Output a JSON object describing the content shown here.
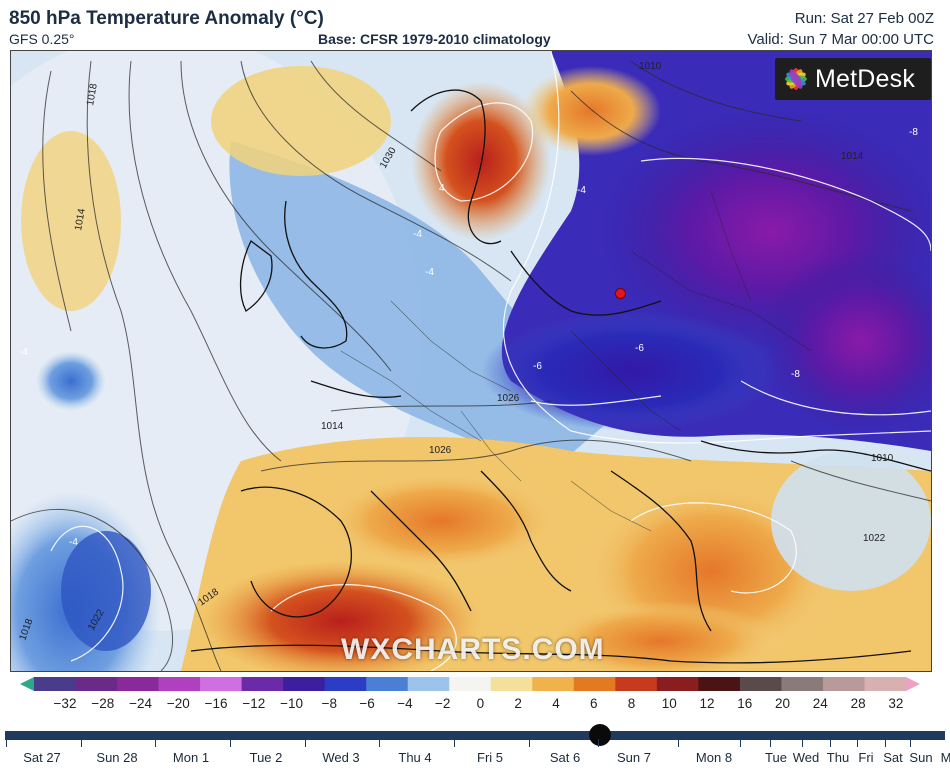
{
  "header": {
    "title": "850 hPa Temperature Anomaly (°C)",
    "model": "GFS 0.25°",
    "base": "Base: CFSR 1979-2010 climatology",
    "run": "Run: Sat 27 Feb 00Z",
    "valid": "Valid: Sun 7 Mar 00:00 UTC"
  },
  "brand": {
    "logo_text": "MetDesk",
    "watermark": "WXCHARTS.COM"
  },
  "map": {
    "isobar_labels": [
      "1018",
      "1014",
      "1030",
      "1010",
      "1026",
      "1018",
      "1014",
      "1022",
      "1026",
      "1018",
      "1022",
      "1014",
      "1010"
    ],
    "anomaly_labels": [
      "-4",
      "-4",
      "4",
      "-4",
      "-6",
      "-8",
      "-8",
      "-6",
      "-4",
      "-4"
    ],
    "marker": "location-marker"
  },
  "colorscale": {
    "ticks": [
      "−32",
      "−28",
      "−24",
      "−20",
      "−16",
      "−12",
      "−10",
      "−8",
      "−6",
      "−4",
      "−2",
      "0",
      "2",
      "4",
      "6",
      "8",
      "10",
      "12",
      "16",
      "20",
      "24",
      "28",
      "32"
    ],
    "colors": [
      "#2ea88a",
      "#4a3c8c",
      "#6a2a8a",
      "#8a2a9a",
      "#b040c0",
      "#d070e0",
      "#6b2ba8",
      "#3b1f9e",
      "#2a3dc4",
      "#4a7fd6",
      "#9cc4ea",
      "#f4f4f0",
      "#f4e09a",
      "#f0b24a",
      "#e27a22",
      "#c83a1e",
      "#8a1e1e",
      "#4a1414",
      "#5a4a4a",
      "#8a7a7a",
      "#b89a9a",
      "#d8b0b0",
      "#f0a0c0"
    ]
  },
  "timeline": {
    "days": [
      "Sat 27",
      "Sun 28",
      "Mon 1",
      "Tue 2",
      "Wed 3",
      "Thu 4",
      "Fri 5",
      "Sat 6",
      "Sun 7",
      "Mon 8",
      "Tue",
      "Wed",
      "Thu",
      "Fri",
      "Sat",
      "Sun",
      "M"
    ],
    "selected": "Sun 7"
  }
}
